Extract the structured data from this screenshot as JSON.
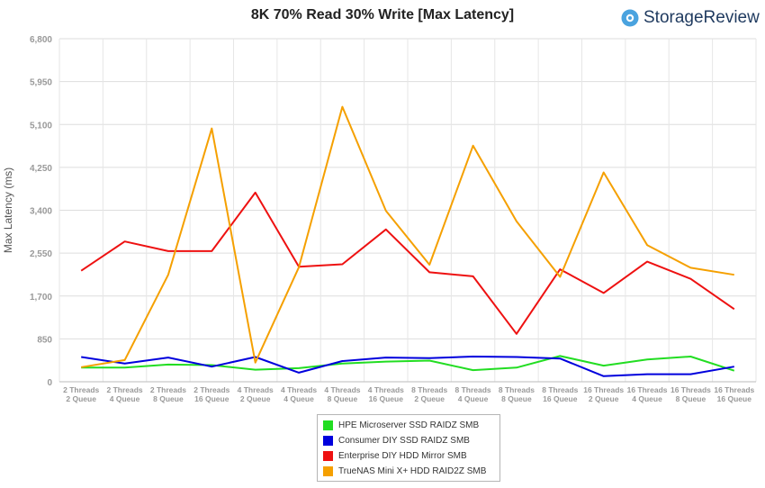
{
  "title": "8K 70% Read 30% Write [Max Latency]",
  "brand": {
    "name": "StorageReview",
    "logo_icon": "storagereview-logo-icon",
    "color": "#4aa3df"
  },
  "chart_data": {
    "type": "line",
    "title": "8K 70% Read 30% Write [Max Latency]",
    "xlabel": "",
    "ylabel": "Max Latency (ms)",
    "ylim": [
      0,
      6800
    ],
    "yticks": [
      "0",
      "850",
      "1,700",
      "2,550",
      "3,400",
      "4,250",
      "5,100",
      "5,950",
      "6,800"
    ],
    "ytick_values": [
      0,
      850,
      1700,
      2550,
      3400,
      4250,
      5100,
      5950,
      6800
    ],
    "grid": true,
    "legend_position": "bottom",
    "categories": [
      [
        "2 Threads",
        "2 Queue"
      ],
      [
        "2 Threads",
        "4 Queue"
      ],
      [
        "2 Threads",
        "8 Queue"
      ],
      [
        "2 Threads",
        "16 Queue"
      ],
      [
        "4 Threads",
        "2 Queue"
      ],
      [
        "4 Threads",
        "4 Queue"
      ],
      [
        "4 Threads",
        "8 Queue"
      ],
      [
        "4 Threads",
        "16 Queue"
      ],
      [
        "8 Threads",
        "2 Queue"
      ],
      [
        "8 Threads",
        "4 Queue"
      ],
      [
        "8 Threads",
        "8 Queue"
      ],
      [
        "8 Threads",
        "16 Queue"
      ],
      [
        "16 Threads",
        "2 Queue"
      ],
      [
        "16 Threads",
        "4 Queue"
      ],
      [
        "16 Threads",
        "8 Queue"
      ],
      [
        "16 Threads",
        "16 Queue"
      ]
    ],
    "series": [
      {
        "name": "HPE Microserver SSD RAIDZ SMB",
        "color": "#22dd22",
        "values": [
          280,
          280,
          340,
          330,
          240,
          270,
          360,
          400,
          420,
          230,
          280,
          510,
          320,
          440,
          500,
          220
        ]
      },
      {
        "name": "Consumer DIY SSD RAIDZ SMB",
        "color": "#0000dd",
        "values": [
          490,
          360,
          480,
          300,
          490,
          180,
          410,
          480,
          470,
          500,
          490,
          460,
          110,
          150,
          150,
          300
        ]
      },
      {
        "name": "Enterprise DIY HDD Mirror SMB",
        "color": "#ee1111",
        "values": [
          2200,
          2780,
          2590,
          2590,
          3750,
          2280,
          2330,
          3020,
          2170,
          2090,
          950,
          2230,
          1760,
          2380,
          2040,
          1440
        ]
      },
      {
        "name": "TrueNAS Mini X+ HDD RAID2Z SMB",
        "color": "#f5a000",
        "values": [
          290,
          430,
          2120,
          5020,
          380,
          2270,
          5450,
          3390,
          2320,
          4680,
          3180,
          2080,
          4150,
          2710,
          2260,
          2120
        ]
      }
    ]
  }
}
